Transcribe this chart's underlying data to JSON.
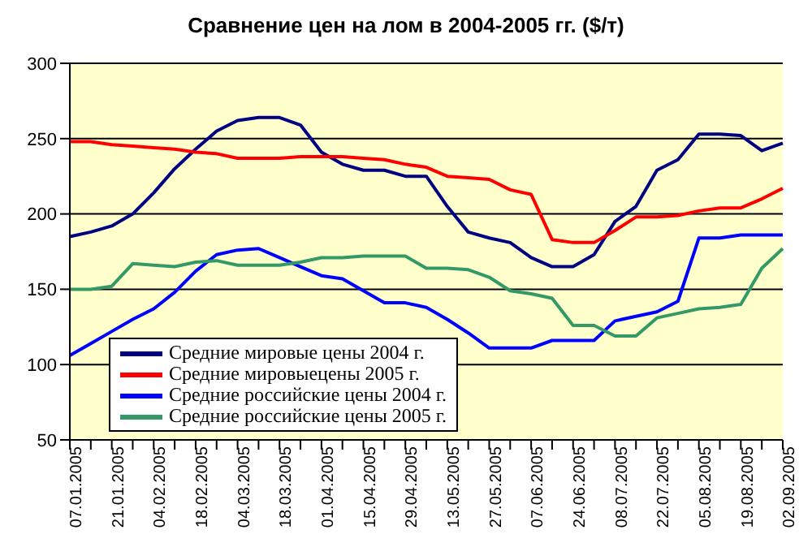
{
  "chart_data": {
    "type": "line",
    "title": "Сравнение цен на лом в 2004-2005 гг. ($/т)",
    "categories": [
      "07.01.2005",
      null,
      "21.01.2005",
      null,
      "04.02.2005",
      null,
      "18.02.2005",
      null,
      "04.03.2005",
      null,
      "18.03.2005",
      null,
      "01.04.2005",
      null,
      "15.04.2005",
      null,
      "29.04.2005",
      null,
      "13.05.2005",
      null,
      "27.05.2005",
      null,
      "07.06.2005",
      null,
      "24.06.2005",
      null,
      "08.07.2005",
      null,
      "22.07.2005",
      null,
      "05.08.2005",
      null,
      "19.08.2005",
      null,
      "02.09.2005"
    ],
    "series": [
      {
        "name": "Средние мировые цены 2004 г.",
        "color": "#000080",
        "values": [
          185,
          188,
          192,
          200,
          214,
          230,
          243,
          255,
          262,
          264,
          264,
          259,
          241,
          233,
          229,
          229,
          225,
          225,
          205,
          188,
          184,
          181,
          171,
          165,
          165,
          173,
          195,
          205,
          229,
          236,
          253,
          253,
          252,
          242,
          247
        ]
      },
      {
        "name": "Средние мировыецены 2005 г.",
        "color": "#ff0000",
        "values": [
          248,
          248,
          246,
          245,
          244,
          243,
          241,
          240,
          237,
          237,
          237,
          238,
          238,
          238,
          237,
          236,
          233,
          231,
          225,
          224,
          223,
          216,
          213,
          183,
          181,
          181,
          189,
          198,
          198,
          199,
          202,
          204,
          204,
          210,
          217
        ]
      },
      {
        "name": "Средние российские цены 2004 г.",
        "color": "#0000ff",
        "values": [
          106,
          114,
          122,
          130,
          137,
          148,
          162,
          173,
          176,
          177,
          171,
          165,
          159,
          157,
          149,
          141,
          141,
          138,
          130,
          121,
          111,
          111,
          111,
          116,
          116,
          116,
          129,
          132,
          135,
          142,
          184,
          184,
          186,
          186,
          186
        ]
      },
      {
        "name": "Средние российские цены 2005 г.",
        "color": "#339966",
        "values": [
          150,
          150,
          152,
          167,
          166,
          165,
          168,
          169,
          166,
          166,
          166,
          168,
          171,
          171,
          172,
          172,
          172,
          164,
          164,
          163,
          158,
          149,
          147,
          144,
          126,
          126,
          119,
          119,
          131,
          134,
          137,
          138,
          140,
          164,
          177
        ]
      }
    ],
    "ylim": [
      50,
      300
    ],
    "yticks": [
      50,
      100,
      150,
      200,
      250,
      300
    ],
    "grid": "y",
    "legend": "bottom left",
    "marker": "none",
    "line_style": "solid"
  }
}
